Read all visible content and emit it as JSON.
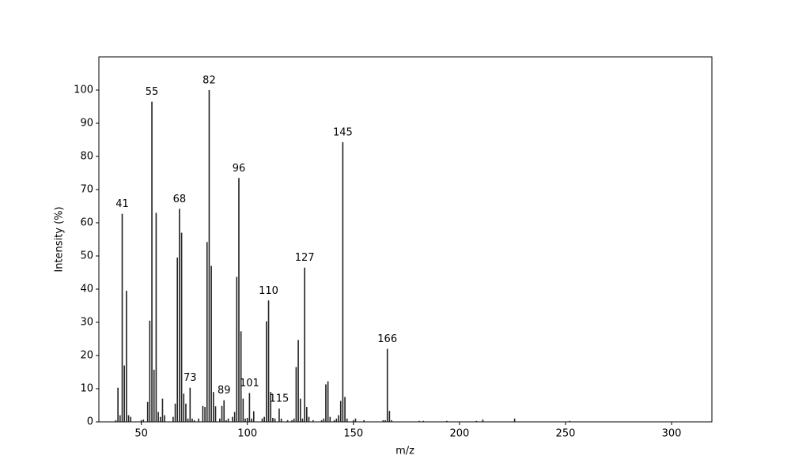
{
  "chart_data": {
    "type": "bar",
    "x_label": "m/z",
    "y_label": "Intensity (%)",
    "color": "#222222",
    "xlim": [
      30,
      319
    ],
    "ylim": [
      0,
      110
    ],
    "xticks": [
      50,
      100,
      150,
      200,
      250,
      300
    ],
    "yticks": [
      0,
      10,
      20,
      30,
      40,
      50,
      60,
      70,
      80,
      90,
      100
    ],
    "x": [
      38,
      39,
      40,
      41,
      42,
      43,
      44,
      45,
      50,
      51,
      53,
      54,
      55,
      56,
      57,
      58,
      59,
      60,
      61,
      65,
      66,
      67,
      68,
      69,
      70,
      71,
      72,
      73,
      74,
      75,
      77,
      79,
      80,
      81,
      82,
      83,
      84,
      85,
      87,
      88,
      89,
      90,
      91,
      93,
      94,
      95,
      96,
      97,
      98,
      99,
      100,
      101,
      102,
      103,
      107,
      108,
      109,
      110,
      111,
      112,
      113,
      115,
      116,
      119,
      121,
      122,
      123,
      124,
      125,
      126,
      127,
      128,
      129,
      131,
      135,
      136,
      137,
      138,
      139,
      141,
      142,
      143,
      144,
      145,
      146,
      147,
      150,
      151,
      155,
      164,
      165,
      166,
      167,
      168,
      181,
      183,
      194,
      208,
      211,
      226,
      252
    ],
    "values": [
      0.5,
      10.3,
      2,
      62.7,
      17,
      39.5,
      2,
      1.5,
      0.5,
      0.7,
      6,
      30.5,
      96.5,
      15.7,
      63,
      3,
      1.5,
      7,
      2,
      1.5,
      5.5,
      49.5,
      64.2,
      57,
      8.5,
      5.5,
      1,
      10.3,
      1,
      0.5,
      1,
      4.8,
      4.5,
      54.2,
      100,
      47,
      9,
      4.7,
      1,
      4.8,
      6.5,
      0.5,
      1,
      1.5,
      3,
      43.7,
      73.5,
      27.3,
      7,
      1,
      1.2,
      8.7,
      1,
      3.2,
      1,
      1.5,
      30.3,
      36.6,
      9,
      1.2,
      1,
      4,
      1,
      0.5,
      0.5,
      1,
      16.5,
      24.7,
      7,
      1,
      46.5,
      4.5,
      1.5,
      0.5,
      0.5,
      1,
      11.3,
      12.2,
      1.5,
      0.5,
      1,
      2,
      6.3,
      84.3,
      7.5,
      1,
      0.5,
      1,
      0.5,
      0.5,
      0.5,
      22,
      3.3,
      0.5,
      0.3,
      0.3,
      0.3,
      0.3,
      0.7,
      1,
      0.3
    ],
    "labeled_peaks": [
      41,
      55,
      68,
      73,
      82,
      89,
      96,
      101,
      110,
      115,
      127,
      145,
      166
    ]
  }
}
